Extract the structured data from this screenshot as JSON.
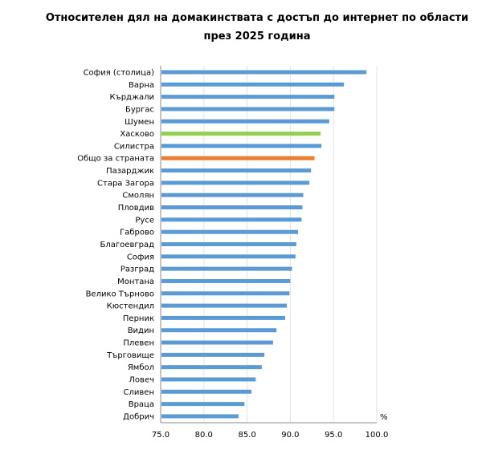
{
  "chart_data": {
    "type": "bar",
    "orientation": "horizontal",
    "title_line1": "Относителен дял на домакинствата с достъп до интернет по области",
    "title_line2": "през 2025 година",
    "xlabel": "%",
    "xlim": [
      75,
      100
    ],
    "xticks": [
      "75.0",
      "80.0",
      "85.0",
      "90.0",
      "95.0",
      "100.0"
    ],
    "grid": true,
    "categories": [
      "София (столица)",
      "Варна",
      "Кърджали",
      "Бургас",
      "Шумен",
      "Хасково",
      "Силистра",
      "Общо за страната",
      "Пазарджик",
      "Стара Загора",
      "Смолян",
      "Пловдив",
      "Русе",
      "Габрово",
      "Благоевград",
      "София",
      "Разград",
      "Монтана",
      "Велико Търново",
      "Кюстендил",
      "Перник",
      "Видин",
      "Плевен",
      "Търговище",
      "Ямбол",
      "Ловеч",
      "Сливен",
      "Враца",
      "Добрич"
    ],
    "values": [
      98.8,
      96.2,
      95.1,
      95.1,
      94.5,
      93.5,
      93.6,
      92.8,
      92.4,
      92.2,
      91.5,
      91.4,
      91.3,
      90.9,
      90.7,
      90.6,
      90.2,
      90.0,
      89.9,
      89.6,
      89.4,
      88.4,
      88.0,
      87.0,
      86.7,
      86.0,
      85.5,
      84.7,
      84.0
    ],
    "colors": {
      "default": "#5b9bd5",
      "Хасково": "#92d050",
      "Общо за страната": "#ed7d31",
      "grid": "#e3e3e3",
      "axis": "#888888"
    }
  }
}
